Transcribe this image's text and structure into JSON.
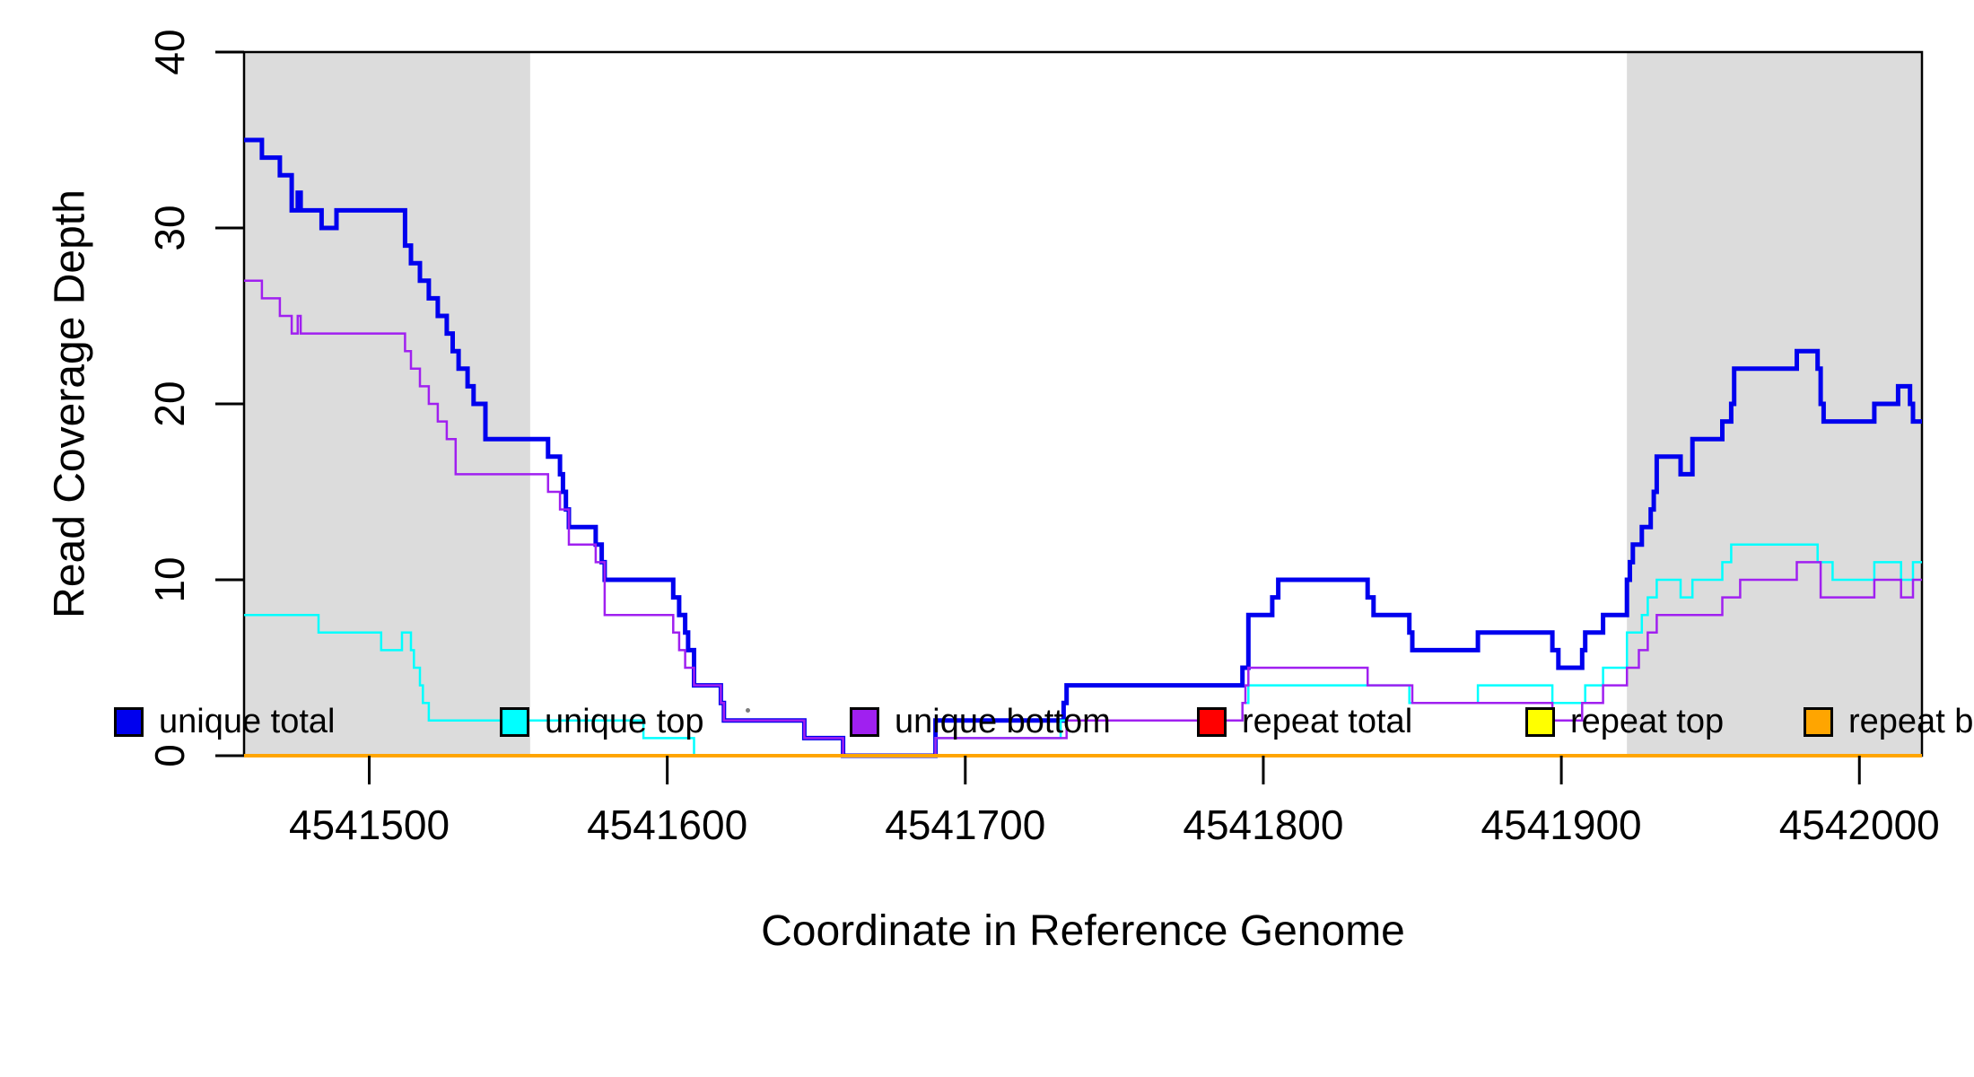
{
  "chart_data": {
    "type": "line",
    "subtype": "step",
    "title": "",
    "xlabel": "Coordinate in Reference Genome",
    "ylabel": "Read Coverage Depth",
    "xlim": [
      4541458,
      4542021
    ],
    "ylim": [
      0,
      40
    ],
    "grid": false,
    "legend_position": "bottom",
    "xticks": [
      {
        "value": 4541500,
        "label": "4541500"
      },
      {
        "value": 4541600,
        "label": "4541600"
      },
      {
        "value": 4541700,
        "label": "4541700"
      },
      {
        "value": 4541800,
        "label": "4541800"
      },
      {
        "value": 4541900,
        "label": "4541900"
      },
      {
        "value": 4542000,
        "label": "4542000"
      }
    ],
    "yticks": [
      {
        "value": 0,
        "label": "0"
      },
      {
        "value": 10,
        "label": "10"
      },
      {
        "value": 20,
        "label": "20"
      },
      {
        "value": 30,
        "label": "30"
      },
      {
        "value": 40,
        "label": "40"
      }
    ],
    "shaded_regions": [
      {
        "x0": 4541458,
        "x1": 4541554,
        "color": "#DCDCDC"
      },
      {
        "x0": 4541922,
        "x1": 4542021,
        "color": "#DCDCDC"
      }
    ],
    "series": [
      {
        "name": "unique total",
        "color": "#0000EE",
        "width": 5,
        "steps": [
          [
            4541458,
            35
          ],
          [
            4541464,
            34
          ],
          [
            4541470,
            33
          ],
          [
            4541474,
            31
          ],
          [
            4541476,
            32
          ],
          [
            4541477,
            31
          ],
          [
            4541484,
            30
          ],
          [
            4541489,
            31
          ],
          [
            4541512,
            29
          ],
          [
            4541514,
            28
          ],
          [
            4541517,
            27
          ],
          [
            4541520,
            26
          ],
          [
            4541523,
            25
          ],
          [
            4541526,
            24
          ],
          [
            4541528,
            23
          ],
          [
            4541530,
            22
          ],
          [
            4541533,
            21
          ],
          [
            4541535,
            20
          ],
          [
            4541539,
            18
          ],
          [
            4541560,
            17
          ],
          [
            4541564,
            16
          ],
          [
            4541565,
            15
          ],
          [
            4541566,
            14
          ],
          [
            4541567,
            13
          ],
          [
            4541576,
            12
          ],
          [
            4541578,
            11
          ],
          [
            4541579,
            10
          ],
          [
            4541602,
            9
          ],
          [
            4541604,
            8
          ],
          [
            4541606,
            7
          ],
          [
            4541607,
            6
          ],
          [
            4541609,
            4
          ],
          [
            4541618,
            3
          ],
          [
            4541619,
            2
          ],
          [
            4541646,
            1
          ],
          [
            4541659,
            0
          ],
          [
            4541690,
            2
          ],
          [
            4541733,
            3
          ],
          [
            4541734,
            4
          ],
          [
            4541793,
            5
          ],
          [
            4541795,
            8
          ],
          [
            4541803,
            9
          ],
          [
            4541805,
            10
          ],
          [
            4541835,
            9
          ],
          [
            4541837,
            8
          ],
          [
            4541849,
            7
          ],
          [
            4541850,
            6
          ],
          [
            4541872,
            7
          ],
          [
            4541897,
            6
          ],
          [
            4541899,
            5
          ],
          [
            4541907,
            6
          ],
          [
            4541908,
            7
          ],
          [
            4541914,
            8
          ],
          [
            4541922,
            10
          ],
          [
            4541923,
            11
          ],
          [
            4541924,
            12
          ],
          [
            4541927,
            13
          ],
          [
            4541930,
            14
          ],
          [
            4541931,
            15
          ],
          [
            4541932,
            17
          ],
          [
            4541940,
            16
          ],
          [
            4541944,
            18
          ],
          [
            4541954,
            19
          ],
          [
            4541957,
            20
          ],
          [
            4541958,
            22
          ],
          [
            4541979,
            23
          ],
          [
            4541986,
            22
          ],
          [
            4541987,
            20
          ],
          [
            4541988,
            19
          ],
          [
            4542005,
            20
          ],
          [
            4542013,
            21
          ],
          [
            4542017,
            20
          ],
          [
            4542018,
            19
          ]
        ]
      },
      {
        "name": "unique top",
        "color": "#00FFFF",
        "width": 2.5,
        "steps": [
          [
            4541458,
            8
          ],
          [
            4541483,
            7
          ],
          [
            4541504,
            6
          ],
          [
            4541511,
            7
          ],
          [
            4541514,
            6
          ],
          [
            4541515,
            5
          ],
          [
            4541517,
            4
          ],
          [
            4541518,
            3
          ],
          [
            4541520,
            2
          ],
          [
            4541592,
            1
          ],
          [
            4541609,
            0
          ],
          [
            4541690,
            1
          ],
          [
            4541732,
            2
          ],
          [
            4541793,
            3
          ],
          [
            4541795,
            4
          ],
          [
            4541849,
            3
          ],
          [
            4541872,
            4
          ],
          [
            4541897,
            3
          ],
          [
            4541908,
            4
          ],
          [
            4541914,
            5
          ],
          [
            4541922,
            7
          ],
          [
            4541927,
            8
          ],
          [
            4541929,
            9
          ],
          [
            4541932,
            10
          ],
          [
            4541940,
            9
          ],
          [
            4541944,
            10
          ],
          [
            4541954,
            11
          ],
          [
            4541957,
            12
          ],
          [
            4541986,
            11
          ],
          [
            4541991,
            10
          ],
          [
            4542005,
            11
          ],
          [
            4542014,
            10
          ],
          [
            4542018,
            11
          ]
        ]
      },
      {
        "name": "unique bottom",
        "color": "#A020F0",
        "width": 2.5,
        "steps": [
          [
            4541458,
            27
          ],
          [
            4541464,
            26
          ],
          [
            4541470,
            25
          ],
          [
            4541474,
            24
          ],
          [
            4541476,
            25
          ],
          [
            4541477,
            24
          ],
          [
            4541512,
            23
          ],
          [
            4541514,
            22
          ],
          [
            4541517,
            21
          ],
          [
            4541520,
            20
          ],
          [
            4541523,
            19
          ],
          [
            4541526,
            18
          ],
          [
            4541529,
            16
          ],
          [
            4541560,
            15
          ],
          [
            4541564,
            14
          ],
          [
            4541567,
            12
          ],
          [
            4541576,
            11
          ],
          [
            4541579,
            8
          ],
          [
            4541602,
            7
          ],
          [
            4541604,
            6
          ],
          [
            4541606,
            5
          ],
          [
            4541609,
            4
          ],
          [
            4541618,
            3
          ],
          [
            4541619,
            2
          ],
          [
            4541646,
            1
          ],
          [
            4541659,
            0
          ],
          [
            4541690,
            1
          ],
          [
            4541734,
            2
          ],
          [
            4541793,
            3
          ],
          [
            4541794,
            4
          ],
          [
            4541795,
            5
          ],
          [
            4541835,
            4
          ],
          [
            4541850,
            3
          ],
          [
            4541897,
            2
          ],
          [
            4541907,
            3
          ],
          [
            4541914,
            4
          ],
          [
            4541922,
            5
          ],
          [
            4541926,
            6
          ],
          [
            4541929,
            7
          ],
          [
            4541932,
            8
          ],
          [
            4541954,
            9
          ],
          [
            4541960,
            10
          ],
          [
            4541979,
            11
          ],
          [
            4541987,
            9
          ],
          [
            4542005,
            10
          ],
          [
            4542014,
            9
          ],
          [
            4542018,
            10
          ]
        ]
      },
      {
        "name": "repeat total",
        "color": "#FF0000",
        "width": 2.5,
        "steps": [
          [
            4541458,
            0
          ]
        ]
      },
      {
        "name": "repeat top",
        "color": "#FFFF00",
        "width": 2.5,
        "steps": [
          [
            4541458,
            0
          ]
        ]
      },
      {
        "name": "repeat bottom",
        "color": "#FFA500",
        "width": 4,
        "steps": [
          [
            4541458,
            0
          ]
        ]
      }
    ]
  },
  "legend": {
    "items": [
      {
        "label": "unique total",
        "color": "#0000EE"
      },
      {
        "label": "unique top",
        "color": "#00FFFF"
      },
      {
        "label": "unique bottom",
        "color": "#A020F0"
      },
      {
        "label": "repeat total",
        "color": "#FF0000"
      },
      {
        "label": "repeat top",
        "color": "#FFFF00"
      },
      {
        "label": "repeat bottom",
        "color": "#FFA500"
      }
    ]
  }
}
